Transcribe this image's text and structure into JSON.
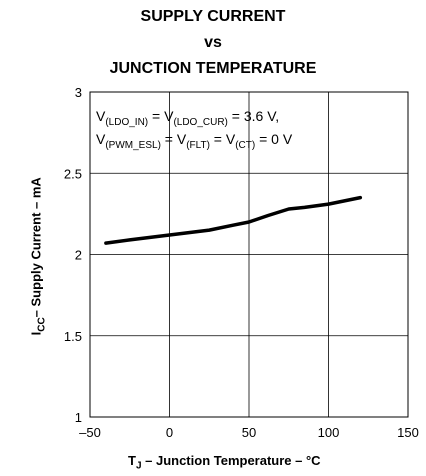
{
  "chart_data": {
    "type": "line",
    "title": [
      "SUPPLY CURRENT",
      "vs",
      "JUNCTION TEMPERATURE"
    ],
    "xlabel": {
      "symbol": "T",
      "sub": "J",
      "text": " – Junction Temperature – °C"
    },
    "ylabel": {
      "symbol": "I",
      "sub": "CC",
      "text": "– Supply Current – mA"
    },
    "xlim": [
      -50,
      150
    ],
    "ylim": [
      1,
      3
    ],
    "xticks": [
      -50,
      0,
      50,
      100,
      150
    ],
    "xtick_labels": [
      "–50",
      "0",
      "50",
      "100",
      "150"
    ],
    "yticks": [
      1,
      1.5,
      2,
      2.5,
      3
    ],
    "ytick_labels": [
      "1",
      "1.5",
      "2",
      "2.5",
      "3"
    ],
    "grid": true,
    "annotation": {
      "line1": [
        {
          "t": "V",
          "s": "(LDO_IN)"
        },
        {
          "t": " = V",
          "s": "(LDO_CUR)"
        },
        {
          "t": "  = 3.6 V,",
          "s": ""
        }
      ],
      "line2": [
        {
          "t": "V",
          "s": "(PWM_ESL)"
        },
        {
          "t": " = V",
          "s": "(FLT)"
        },
        {
          "t": " = V",
          "s": "(CT)"
        },
        {
          "t": " = 0 V",
          "s": ""
        }
      ]
    },
    "series": [
      {
        "x": [
          -40,
          -25,
          0,
          25,
          40,
          50,
          62,
          75,
          85,
          100,
          110,
          120
        ],
        "y": [
          2.07,
          2.09,
          2.12,
          2.15,
          2.18,
          2.2,
          2.24,
          2.28,
          2.29,
          2.31,
          2.33,
          2.35
        ]
      }
    ]
  }
}
